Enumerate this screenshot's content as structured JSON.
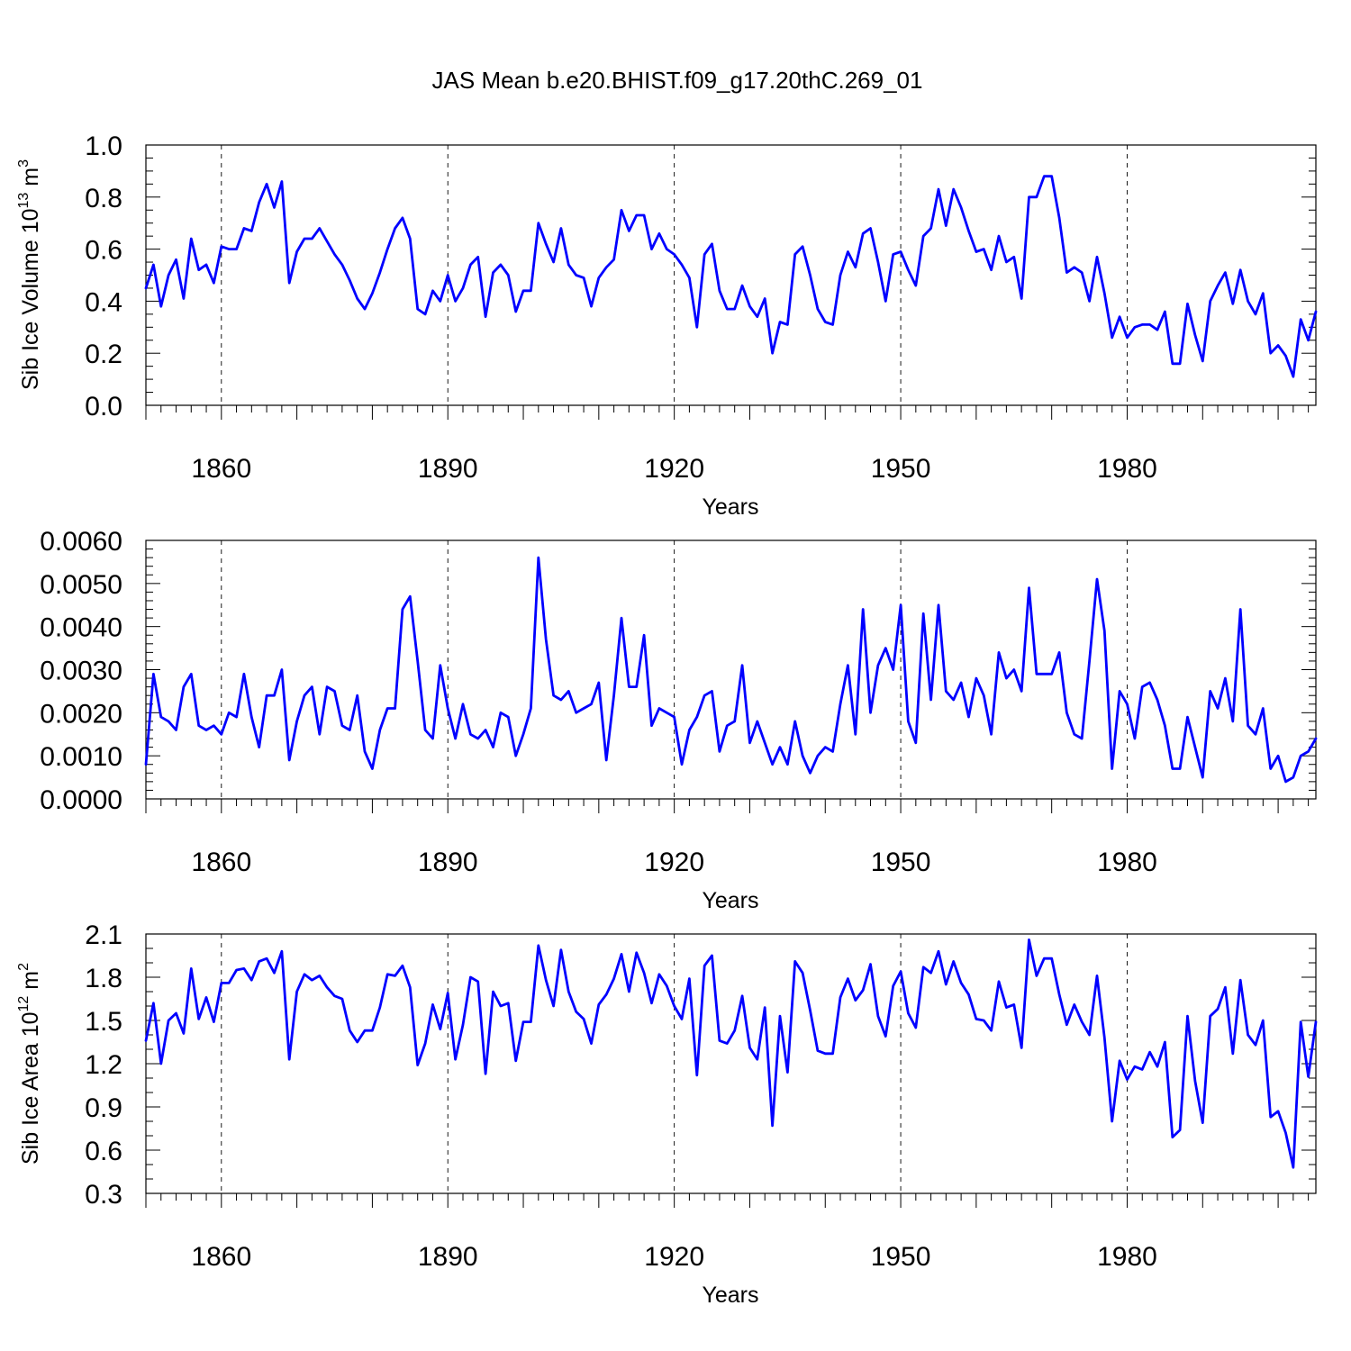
{
  "title": "JAS Mean b.e20.BHIST.f09_g17.20thC.269_01",
  "colors": {
    "line": "#0000ff",
    "axis": "#000000",
    "background": "#ffffff"
  },
  "chart_data": [
    {
      "type": "line",
      "ylabel": "Sib Ice Volume 10",
      "ylabel_exp": "13",
      "ylabel_unit": "m",
      "ylabel_unit_exp": "3",
      "xlabel": "Years",
      "xlim": [
        1850,
        2005
      ],
      "ylim": [
        0.0,
        1.0
      ],
      "x_ticks": [
        1860,
        1890,
        1920,
        1950,
        1980
      ],
      "y_ticks": [
        "0.0",
        "0.2",
        "0.4",
        "0.6",
        "0.8",
        "1.0"
      ],
      "y_tick_values": [
        0.0,
        0.2,
        0.4,
        0.6,
        0.8,
        1.0
      ],
      "y_minor_step": 0.05,
      "x_start": 1850,
      "values": [
        0.45,
        0.54,
        0.38,
        0.5,
        0.56,
        0.41,
        0.64,
        0.52,
        0.54,
        0.47,
        0.61,
        0.6,
        0.6,
        0.68,
        0.67,
        0.78,
        0.85,
        0.76,
        0.86,
        0.47,
        0.59,
        0.64,
        0.64,
        0.68,
        0.63,
        0.58,
        0.54,
        0.48,
        0.41,
        0.37,
        0.43,
        0.51,
        0.6,
        0.68,
        0.72,
        0.64,
        0.37,
        0.35,
        0.44,
        0.4,
        0.5,
        0.4,
        0.45,
        0.54,
        0.57,
        0.34,
        0.51,
        0.54,
        0.5,
        0.36,
        0.44,
        0.44,
        0.7,
        0.62,
        0.55,
        0.68,
        0.54,
        0.5,
        0.49,
        0.38,
        0.49,
        0.53,
        0.56,
        0.75,
        0.67,
        0.73,
        0.73,
        0.6,
        0.66,
        0.6,
        0.58,
        0.54,
        0.49,
        0.3,
        0.58,
        0.62,
        0.44,
        0.37,
        0.37,
        0.46,
        0.38,
        0.34,
        0.41,
        0.2,
        0.32,
        0.31,
        0.58,
        0.61,
        0.5,
        0.37,
        0.32,
        0.31,
        0.5,
        0.59,
        0.53,
        0.66,
        0.68,
        0.55,
        0.4,
        0.58,
        0.59,
        0.52,
        0.46,
        0.65,
        0.68,
        0.83,
        0.69,
        0.83,
        0.76,
        0.67,
        0.59,
        0.6,
        0.52,
        0.65,
        0.55,
        0.57,
        0.41,
        0.8,
        0.8,
        0.88,
        0.88,
        0.72,
        0.51,
        0.53,
        0.51,
        0.4,
        0.57,
        0.43,
        0.26,
        0.34,
        0.26,
        0.3,
        0.31,
        0.31,
        0.29,
        0.36,
        0.16,
        0.16,
        0.39,
        0.27,
        0.17,
        0.4,
        0.46,
        0.51,
        0.39,
        0.52,
        0.4,
        0.35,
        0.43,
        0.2,
        0.23,
        0.19,
        0.11,
        0.33,
        0.25,
        0.36
      ]
    },
    {
      "type": "line",
      "ylabel": "",
      "xlabel": "Years",
      "xlim": [
        1850,
        2005
      ],
      "ylim": [
        0.0,
        0.006
      ],
      "x_ticks": [
        1860,
        1890,
        1920,
        1950,
        1980
      ],
      "y_ticks": [
        "0.0000",
        "0.0010",
        "0.0020",
        "0.0030",
        "0.0040",
        "0.0050",
        "0.0060"
      ],
      "y_tick_values": [
        0.0,
        0.001,
        0.002,
        0.003,
        0.004,
        0.005,
        0.006
      ],
      "y_minor_step": 0.0002,
      "x_start": 1850,
      "values": [
        0.0008,
        0.0029,
        0.0019,
        0.0018,
        0.0016,
        0.0026,
        0.0029,
        0.0017,
        0.0016,
        0.0017,
        0.0015,
        0.002,
        0.0019,
        0.0029,
        0.0019,
        0.0012,
        0.0024,
        0.0024,
        0.003,
        0.0009,
        0.0018,
        0.0024,
        0.0026,
        0.0015,
        0.0026,
        0.0025,
        0.0017,
        0.0016,
        0.0024,
        0.0011,
        0.0007,
        0.0016,
        0.0021,
        0.0021,
        0.0044,
        0.0047,
        0.0032,
        0.0016,
        0.0014,
        0.0031,
        0.0021,
        0.0014,
        0.0022,
        0.0015,
        0.0014,
        0.0016,
        0.0012,
        0.002,
        0.0019,
        0.001,
        0.0015,
        0.0021,
        0.0056,
        0.0037,
        0.0024,
        0.0023,
        0.0025,
        0.002,
        0.0021,
        0.0022,
        0.0027,
        0.0009,
        0.0024,
        0.0042,
        0.0026,
        0.0026,
        0.0038,
        0.0017,
        0.0021,
        0.002,
        0.0019,
        0.0008,
        0.0016,
        0.0019,
        0.0024,
        0.0025,
        0.0011,
        0.0017,
        0.0018,
        0.0031,
        0.0013,
        0.0018,
        0.0013,
        0.0008,
        0.0012,
        0.0008,
        0.0018,
        0.001,
        0.0006,
        0.001,
        0.0012,
        0.0011,
        0.0022,
        0.0031,
        0.0015,
        0.0044,
        0.002,
        0.0031,
        0.0035,
        0.003,
        0.0045,
        0.0018,
        0.0013,
        0.0043,
        0.0023,
        0.0045,
        0.0025,
        0.0023,
        0.0027,
        0.0019,
        0.0028,
        0.0024,
        0.0015,
        0.0034,
        0.0028,
        0.003,
        0.0025,
        0.0049,
        0.0029,
        0.0029,
        0.0029,
        0.0034,
        0.002,
        0.0015,
        0.0014,
        0.0032,
        0.0051,
        0.0039,
        0.0007,
        0.0025,
        0.0022,
        0.0014,
        0.0026,
        0.0027,
        0.0023,
        0.0017,
        0.0007,
        0.0007,
        0.0019,
        0.0012,
        0.0005,
        0.0025,
        0.0021,
        0.0028,
        0.0018,
        0.0044,
        0.0017,
        0.0015,
        0.0021,
        0.0007,
        0.001,
        0.0004,
        0.0005,
        0.001,
        0.0011,
        0.0014
      ]
    },
    {
      "type": "line",
      "ylabel": "Sib Ice Area 10",
      "ylabel_exp": "12",
      "ylabel_unit": "m",
      "ylabel_unit_exp": "2",
      "xlabel": "Years",
      "xlim": [
        1850,
        2005
      ],
      "ylim": [
        0.3,
        2.1
      ],
      "x_ticks": [
        1860,
        1890,
        1920,
        1950,
        1980
      ],
      "y_ticks": [
        "0.3",
        "0.6",
        "0.9",
        "1.2",
        "1.5",
        "1.8",
        "2.1"
      ],
      "y_tick_values": [
        0.3,
        0.6,
        0.9,
        1.2,
        1.5,
        1.8,
        2.1
      ],
      "y_minor_step": 0.1,
      "x_start": 1850,
      "values": [
        1.36,
        1.62,
        1.2,
        1.5,
        1.55,
        1.41,
        1.86,
        1.51,
        1.66,
        1.49,
        1.76,
        1.76,
        1.85,
        1.86,
        1.78,
        1.91,
        1.93,
        1.83,
        1.98,
        1.23,
        1.7,
        1.82,
        1.78,
        1.81,
        1.73,
        1.67,
        1.65,
        1.43,
        1.35,
        1.43,
        1.43,
        1.59,
        1.82,
        1.81,
        1.88,
        1.73,
        1.19,
        1.34,
        1.61,
        1.44,
        1.69,
        1.23,
        1.47,
        1.8,
        1.77,
        1.13,
        1.7,
        1.6,
        1.62,
        1.22,
        1.49,
        1.49,
        2.02,
        1.78,
        1.6,
        1.99,
        1.7,
        1.56,
        1.51,
        1.34,
        1.61,
        1.68,
        1.79,
        1.96,
        1.7,
        1.97,
        1.83,
        1.62,
        1.82,
        1.74,
        1.6,
        1.51,
        1.79,
        1.12,
        1.88,
        1.95,
        1.36,
        1.34,
        1.43,
        1.67,
        1.31,
        1.23,
        1.59,
        0.77,
        1.53,
        1.14,
        1.91,
        1.83,
        1.57,
        1.29,
        1.27,
        1.27,
        1.66,
        1.79,
        1.64,
        1.71,
        1.89,
        1.53,
        1.39,
        1.74,
        1.84,
        1.55,
        1.45,
        1.87,
        1.83,
        1.98,
        1.75,
        1.91,
        1.76,
        1.68,
        1.51,
        1.5,
        1.43,
        1.77,
        1.59,
        1.61,
        1.31,
        2.06,
        1.81,
        1.93,
        1.93,
        1.68,
        1.47,
        1.61,
        1.49,
        1.4,
        1.81,
        1.38,
        0.8,
        1.22,
        1.09,
        1.18,
        1.16,
        1.28,
        1.18,
        1.35,
        0.69,
        0.74,
        1.53,
        1.08,
        0.79,
        1.53,
        1.58,
        1.73,
        1.27,
        1.78,
        1.4,
        1.33,
        1.5,
        0.83,
        0.87,
        0.72,
        0.48,
        1.49,
        1.11,
        1.49
      ]
    }
  ]
}
